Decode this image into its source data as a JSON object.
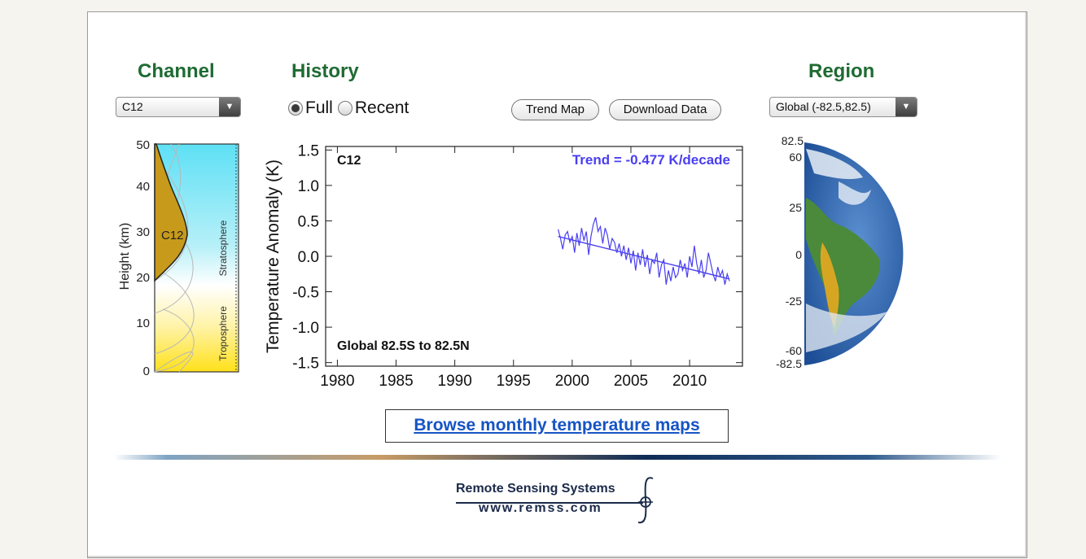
{
  "headings": {
    "channel": "Channel",
    "history": "History",
    "region": "Region"
  },
  "channel_select": {
    "value": "C12"
  },
  "region_select": {
    "value": "Global (-82.5,82.5)"
  },
  "history_radio": {
    "options": [
      "Full",
      "Recent"
    ],
    "selected": "Full"
  },
  "buttons": {
    "trend_map": "Trend Map",
    "download_data": "Download Data"
  },
  "browse_link": "Browse monthly temperature maps",
  "logo": {
    "name": "Remote Sensing Systems",
    "url": "www.remss.com"
  },
  "weighting_panel": {
    "ylabel": "Height  (km)",
    "ticks": [
      "0",
      "10",
      "20",
      "30",
      "40",
      "50"
    ],
    "channel_label": "C12",
    "layer_labels": [
      "Stratosphere",
      "Troposphere"
    ]
  },
  "globe": {
    "lat_labels": [
      "82.5",
      "60",
      "25",
      "0",
      "-25",
      "-60",
      "-82.5"
    ]
  },
  "chart_data": {
    "type": "line",
    "corner_label": "C12",
    "trend_text": "Trend = -0.477 K/decade",
    "region_text": "Global  82.5S to  82.5N",
    "ylabel": "Temperature Anomaly (K)",
    "xlabel": "",
    "xlim": [
      1979,
      2014.5
    ],
    "ylim": [
      -1.55,
      1.55
    ],
    "xticks": [
      1980,
      1985,
      1990,
      1995,
      2000,
      2005,
      2010
    ],
    "yticks": [
      1.5,
      1.0,
      0.5,
      0.0,
      -0.5,
      -1.0,
      -1.5
    ],
    "ytick_labels": [
      "1.5",
      "1.0",
      "0.5",
      "0.0",
      "-0.5",
      "-1.0",
      "-1.5"
    ],
    "colors": {
      "series": "#4a3ff0",
      "trend_text": "#4a3ff0"
    },
    "series": [
      {
        "x": [
          1998.8,
          1999.0,
          1999.2,
          1999.4,
          1999.6,
          1999.8,
          2000.0,
          2000.2,
          2000.4,
          2000.6,
          2000.8,
          2001.0,
          2001.2,
          2001.4,
          2001.6,
          2001.8,
          2002.0,
          2002.2,
          2002.4,
          2002.6,
          2002.8,
          2003.0,
          2003.2,
          2003.4,
          2003.6,
          2003.8,
          2004.0,
          2004.2,
          2004.4,
          2004.6,
          2004.8,
          2005.0,
          2005.2,
          2005.4,
          2005.6,
          2005.8,
          2006.0,
          2006.2,
          2006.4,
          2006.6,
          2006.8,
          2007.0,
          2007.2,
          2007.4,
          2007.6,
          2007.8,
          2008.0,
          2008.2,
          2008.4,
          2008.6,
          2008.8,
          2009.0,
          2009.2,
          2009.4,
          2009.6,
          2009.8,
          2010.0,
          2010.2,
          2010.4,
          2010.6,
          2010.8,
          2011.0,
          2011.2,
          2011.4,
          2011.6,
          2011.8,
          2012.0,
          2012.2,
          2012.4,
          2012.6,
          2012.8,
          2013.0,
          2013.2,
          2013.4
        ],
        "y": [
          0.38,
          0.25,
          0.1,
          0.3,
          0.35,
          0.2,
          0.28,
          0.05,
          0.33,
          0.15,
          0.4,
          0.22,
          0.35,
          0.02,
          0.28,
          0.45,
          0.55,
          0.35,
          0.42,
          0.18,
          0.4,
          0.3,
          0.1,
          0.25,
          0.2,
          0.05,
          0.18,
          0.0,
          0.15,
          -0.05,
          0.12,
          -0.1,
          0.08,
          -0.2,
          0.05,
          -0.12,
          0.1,
          -0.15,
          0.02,
          -0.25,
          -0.05,
          -0.1,
          0.05,
          -0.3,
          -0.12,
          -0.05,
          -0.4,
          -0.2,
          -0.35,
          -0.15,
          -0.3,
          -0.25,
          -0.05,
          -0.2,
          -0.1,
          -0.3,
          0.0,
          -0.15,
          0.15,
          -0.1,
          -0.25,
          -0.05,
          -0.3,
          -0.2,
          0.05,
          -0.1,
          -0.25,
          -0.35,
          -0.15,
          -0.28,
          -0.2,
          -0.4,
          -0.25,
          -0.35
        ]
      }
    ],
    "trend_line": {
      "x": [
        1998.8,
        2013.4
      ],
      "y": [
        0.28,
        -0.32
      ]
    }
  }
}
